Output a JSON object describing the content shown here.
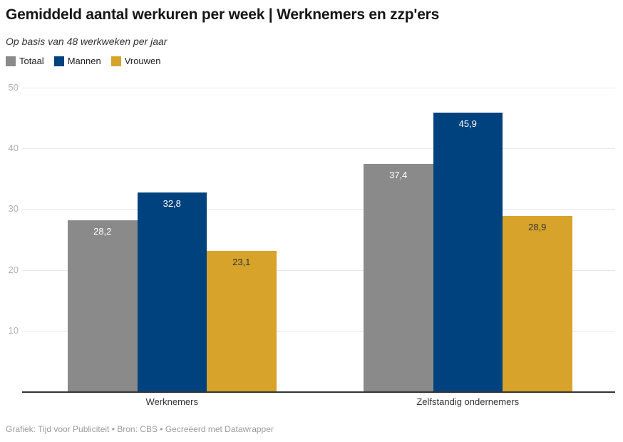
{
  "header": {
    "title": "Gemiddeld aantal werkuren per week | Werknemers en zzp'ers",
    "subtitle": "Op basis van 48 werkweken per jaar"
  },
  "footer": {
    "text": "Grafiek: Tijd voor Publiciteit • Bron: CBS • Gecreëerd met Datawrapper"
  },
  "chart_data": {
    "type": "bar",
    "title": "Gemiddeld aantal werkuren per week | Werknemers en zzp'ers",
    "subtitle": "Op basis van 48 werkweken per jaar",
    "categories": [
      "Werknemers",
      "Zelfstandig ondernemers"
    ],
    "series": [
      {
        "name": "Totaal",
        "color": "#8a8a8a",
        "label_color": "#ffffff",
        "values": [
          28.2,
          37.4
        ],
        "value_labels": [
          "28,2",
          "37,4"
        ]
      },
      {
        "name": "Mannen",
        "color": "#00427e",
        "label_color": "#ffffff",
        "values": [
          32.8,
          45.9
        ],
        "value_labels": [
          "32,8",
          "45,9"
        ]
      },
      {
        "name": "Vrouwen",
        "color": "#d7a32b",
        "label_color": "#333333",
        "values": [
          23.1,
          28.9
        ],
        "value_labels": [
          "23,1",
          "28,9"
        ]
      }
    ],
    "yticks": [
      10,
      20,
      30,
      40,
      50
    ],
    "ylim": [
      0,
      50
    ],
    "xlabel": "",
    "ylabel": "",
    "grid": true,
    "legend_position": "top",
    "colors": {
      "gridline": "#e8e8e8",
      "axis_line": "#333333",
      "ytick_text": "#b1b1b1",
      "category_text": "#333333"
    }
  }
}
